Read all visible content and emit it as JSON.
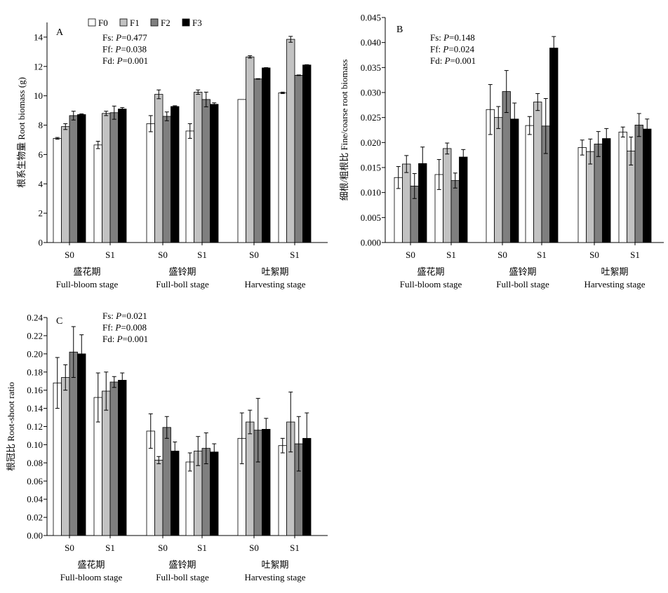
{
  "legend": {
    "items": [
      {
        "label": "F0",
        "color": "#ffffff"
      },
      {
        "label": "F1",
        "color": "#c2c2c2"
      },
      {
        "label": "F2",
        "color": "#7f7f7f"
      },
      {
        "label": "F3",
        "color": "#000000"
      }
    ]
  },
  "chart_data": [
    {
      "type": "bar",
      "panel": "A",
      "ylabel": "根系生物量 Root biomass (g)",
      "ylim": [
        0,
        15
      ],
      "yticks": [
        "0",
        "2",
        "4",
        "6",
        "8",
        "10",
        "12",
        "14"
      ],
      "yticks_values": [
        0,
        2,
        4,
        6,
        8,
        10,
        12,
        14
      ],
      "categories": [
        "S0",
        "S1",
        "S0",
        "S1",
        "S0",
        "S1"
      ],
      "groups": [
        {
          "cn": "盛花期",
          "en": "Full-bloom stage"
        },
        {
          "cn": "盛铃期",
          "en": "Full-boll stage"
        },
        {
          "cn": "吐絮期",
          "en": "Harvesting stage"
        }
      ],
      "stats": [
        "Fs: P=0.477",
        "Ff: P=0.038",
        "Fd: P=0.001"
      ],
      "series": [
        {
          "name": "F0",
          "values": [
            7.1,
            6.65,
            8.1,
            7.6,
            9.75,
            10.2
          ],
          "errors": [
            0.06,
            0.25,
            0.55,
            0.5,
            0.0,
            0.05
          ]
        },
        {
          "name": "F1",
          "values": [
            7.9,
            8.8,
            10.1,
            10.25,
            12.65,
            13.85
          ],
          "errors": [
            0.2,
            0.15,
            0.3,
            0.15,
            0.08,
            0.2
          ]
        },
        {
          "name": "F2",
          "values": [
            8.65,
            8.85,
            8.6,
            9.75,
            11.15,
            11.4
          ],
          "errors": [
            0.3,
            0.45,
            0.3,
            0.5,
            0.02,
            0.02
          ]
        },
        {
          "name": "F3",
          "values": [
            8.72,
            9.1,
            9.27,
            9.42,
            11.9,
            12.1
          ],
          "errors": [
            0.05,
            0.1,
            0.05,
            0.1,
            0.02,
            0.02
          ]
        }
      ]
    },
    {
      "type": "bar",
      "panel": "B",
      "ylabel": "细根/粗根比 Fine/coarse root biomass",
      "ylim": [
        0,
        0.045
      ],
      "yticks": [
        "0.000",
        "0.005",
        "0.010",
        "0.015",
        "0.020",
        "0.025",
        "0.030",
        "0.035",
        "0.040",
        "0.045"
      ],
      "yticks_values": [
        0,
        0.005,
        0.01,
        0.015,
        0.02,
        0.025,
        0.03,
        0.035,
        0.04,
        0.045
      ],
      "categories": [
        "S0",
        "S1",
        "S0",
        "S1",
        "S0",
        "S1"
      ],
      "groups": [
        {
          "cn": "盛花期",
          "en": "Full-bloom stage"
        },
        {
          "cn": "盛铃期",
          "en": "Full-boll stage"
        },
        {
          "cn": "吐絮期",
          "en": "Harvesting stage"
        }
      ],
      "stats": [
        "Fs: P=0.148",
        "Ff: P=0.024",
        "Fd: P=0.001"
      ],
      "series": [
        {
          "name": "F0",
          "values": [
            0.013,
            0.0136,
            0.0266,
            0.0234,
            0.019,
            0.0221
          ],
          "errors": [
            0.0022,
            0.003,
            0.005,
            0.0018,
            0.0015,
            0.001
          ]
        },
        {
          "name": "F1",
          "values": [
            0.0157,
            0.0188,
            0.025,
            0.0281,
            0.0182,
            0.0183
          ],
          "errors": [
            0.0017,
            0.0011,
            0.0022,
            0.0017,
            0.0025,
            0.0028
          ]
        },
        {
          "name": "F2",
          "values": [
            0.0113,
            0.0124,
            0.0302,
            0.0233,
            0.0197,
            0.0235
          ],
          "errors": [
            0.0025,
            0.0015,
            0.0042,
            0.0055,
            0.0025,
            0.0023
          ]
        },
        {
          "name": "F3",
          "values": [
            0.0158,
            0.0171,
            0.0247,
            0.0389,
            0.0208,
            0.0227
          ],
          "errors": [
            0.0033,
            0.0015,
            0.0032,
            0.0023,
            0.002,
            0.002
          ]
        }
      ]
    },
    {
      "type": "bar",
      "panel": "C",
      "ylabel": "根冠比 Root-shoot ratio",
      "ylim": [
        0,
        0.24
      ],
      "yticks": [
        "0.00",
        "0.02",
        "0.04",
        "0.06",
        "0.08",
        "0.10",
        "0.12",
        "0.14",
        "0.16",
        "0.18",
        "0.20",
        "0.22",
        "0.24"
      ],
      "yticks_values": [
        0,
        0.02,
        0.04,
        0.06,
        0.08,
        0.1,
        0.12,
        0.14,
        0.16,
        0.18,
        0.2,
        0.22,
        0.24
      ],
      "categories": [
        "S0",
        "S1",
        "S0",
        "S1",
        "S0",
        "S1"
      ],
      "groups": [
        {
          "cn": "盛花期",
          "en": "Full-bloom stage"
        },
        {
          "cn": "盛铃期",
          "en": "Full-boll stage"
        },
        {
          "cn": "吐絮期",
          "en": "Harvesting stage"
        }
      ],
      "stats": [
        "Fs: P=0.021",
        "Ff: P=0.008",
        "Fd: P=0.001"
      ],
      "series": [
        {
          "name": "F0",
          "values": [
            0.168,
            0.152,
            0.115,
            0.081,
            0.107,
            0.099
          ],
          "errors": [
            0.028,
            0.027,
            0.019,
            0.01,
            0.028,
            0.008
          ]
        },
        {
          "name": "F1",
          "values": [
            0.174,
            0.159,
            0.083,
            0.093,
            0.125,
            0.125
          ],
          "errors": [
            0.014,
            0.021,
            0.004,
            0.016,
            0.013,
            0.033
          ]
        },
        {
          "name": "F2",
          "values": [
            0.202,
            0.169,
            0.119,
            0.096,
            0.116,
            0.101
          ],
          "errors": [
            0.028,
            0.006,
            0.012,
            0.017,
            0.035,
            0.03
          ]
        },
        {
          "name": "F3",
          "values": [
            0.2,
            0.171,
            0.093,
            0.092,
            0.117,
            0.107
          ],
          "errors": [
            0.021,
            0.008,
            0.01,
            0.009,
            0.012,
            0.028
          ]
        }
      ]
    }
  ]
}
